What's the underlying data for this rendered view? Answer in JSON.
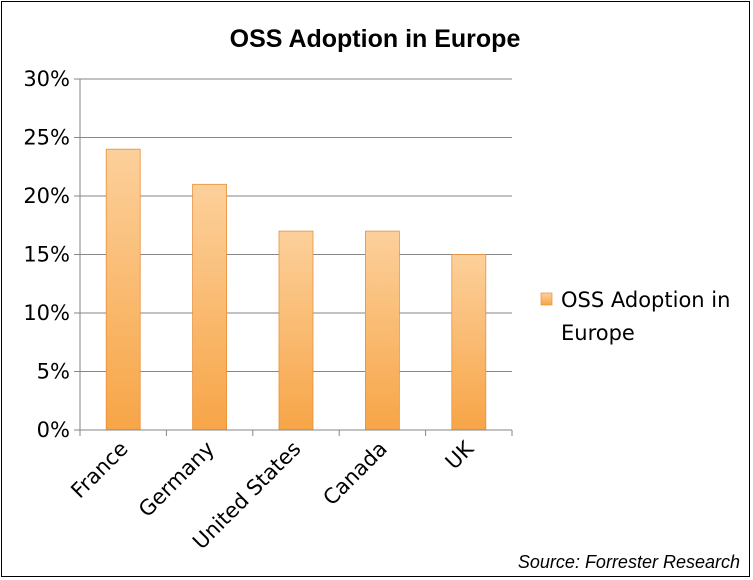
{
  "chart_data": {
    "type": "bar",
    "title": "OSS Adoption in Europe",
    "categories": [
      "France",
      "Germany",
      "United States",
      "Canada",
      "UK"
    ],
    "series": [
      {
        "name": "OSS Adoption in Europe",
        "values": [
          24,
          21,
          17,
          17,
          15
        ]
      }
    ],
    "ylim": [
      0,
      30
    ],
    "yticks": [
      "0%",
      "5%",
      "10%",
      "15%",
      "20%",
      "25%",
      "30%"
    ],
    "ytick_values": [
      0,
      5,
      10,
      15,
      20,
      25,
      30
    ],
    "grid": true,
    "legend_position": "right",
    "legend_lines": [
      "OSS Adoption in",
      "Europe"
    ],
    "bar_color": "#f9b15a"
  },
  "source": "Source: Forrester Research"
}
